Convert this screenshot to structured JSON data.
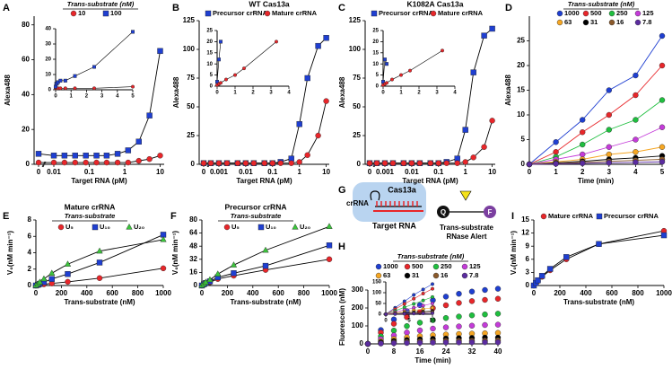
{
  "chart_data": [
    {
      "type": "line",
      "label": "A",
      "ylabel": "Alexa488",
      "xlabel": "Target RNA (pM)",
      "xscale": "log",
      "legend_title": "Trans-substrate (nM)",
      "line_color": "#000000",
      "x": [
        0,
        0.01,
        0.02,
        0.04,
        0.08,
        0.16,
        0.31,
        0.63,
        1.25,
        2.5,
        5,
        10
      ],
      "series": [
        {
          "name": "10",
          "color": "#e8262a",
          "marker": "circle",
          "values": [
            1,
            1,
            1,
            1,
            1,
            1,
            1,
            1,
            1,
            2,
            3,
            5
          ]
        },
        {
          "name": "100",
          "color": "#1f3fd1",
          "marker": "square",
          "values": [
            6,
            5,
            5,
            5,
            5,
            5,
            5,
            6,
            8,
            13,
            28,
            65
          ]
        }
      ],
      "xlim": [
        0,
        13
      ],
      "xticks": [
        0,
        0.01,
        0.1,
        1,
        10
      ],
      "ylim": [
        0,
        85
      ],
      "yticks": [
        0,
        20,
        40,
        60,
        80
      ],
      "inset": {
        "type": "line",
        "x": [
          0,
          0.04,
          0.08,
          0.16,
          0.31,
          0.63,
          1.25,
          2.5,
          5
        ],
        "series": [
          {
            "values": [
              1,
              1,
              1,
              1,
              1,
              1,
              1,
              1,
              2
            ]
          },
          {
            "values": [
              2,
              4,
              4,
              5,
              6,
              6,
              9,
              15,
              38
            ]
          }
        ],
        "xlim": [
          0,
          5
        ],
        "xticks": [
          0,
          1,
          2,
          3,
          4,
          5
        ],
        "ylim": [
          0,
          40
        ],
        "yticks": [
          0,
          10,
          20,
          30,
          40
        ]
      }
    },
    {
      "type": "line",
      "label": "B",
      "title": "WT Cas13a",
      "ylabel": "Alexa488",
      "xlabel": "Target RNA (pM)",
      "xscale": "log",
      "line_color": "#000000",
      "x": [
        0,
        0.0005,
        0.001,
        0.002,
        0.005,
        0.01,
        0.02,
        0.05,
        0.1,
        0.2,
        0.5,
        1,
        2,
        5,
        10
      ],
      "series": [
        {
          "name": "Precursor crRNA",
          "color": "#1f3fd1",
          "marker": "square",
          "values": [
            1,
            1,
            1,
            1,
            1,
            1,
            1,
            1,
            1,
            2,
            5,
            35,
            75,
            103,
            110
          ]
        },
        {
          "name": "Mature crRNA",
          "color": "#e8262a",
          "marker": "circle",
          "values": [
            1,
            1,
            1,
            1,
            1,
            1,
            1,
            1,
            1,
            1,
            1,
            2,
            8,
            25,
            55
          ]
        }
      ],
      "xlim": [
        0,
        13
      ],
      "xticks": [
        0,
        0.001,
        0.01,
        0.1,
        1,
        10
      ],
      "ylim": [
        0,
        125
      ],
      "yticks": [
        0,
        25,
        50,
        75,
        100,
        125
      ],
      "inset": {
        "type": "line",
        "x": [
          0,
          0.1,
          0.2,
          0.5,
          1,
          1.5,
          3.3
        ],
        "series": [
          {
            "values": [
              2,
              12,
              20,
              null,
              null,
              null,
              null
            ]
          },
          {
            "values": [
              0.5,
              1,
              1.5,
              3,
              5,
              8,
              20
            ]
          }
        ],
        "xlim": [
          0,
          4
        ],
        "xticks": [
          0,
          1,
          2,
          3,
          4
        ],
        "ylim": [
          0,
          25
        ],
        "yticks": [
          0,
          5,
          10,
          15,
          20,
          25
        ]
      }
    },
    {
      "type": "line",
      "label": "C",
      "title": "K1082A Cas13a",
      "ylabel": "Alexa488",
      "xlabel": "Target RNA (pM)",
      "xscale": "log",
      "line_color": "#000000",
      "x": [
        0,
        0.0005,
        0.001,
        0.002,
        0.005,
        0.01,
        0.02,
        0.05,
        0.1,
        0.2,
        0.5,
        1,
        2,
        5,
        10
      ],
      "series": [
        {
          "name": "Precursor crRNA",
          "color": "#1f3fd1",
          "marker": "square",
          "values": [
            1,
            1,
            1,
            1,
            1,
            1,
            1,
            1,
            1,
            2,
            5,
            30,
            80,
            112,
            118
          ]
        },
        {
          "name": "Mature crRNA",
          "color": "#e8262a",
          "marker": "circle",
          "values": [
            1,
            1,
            1,
            1,
            1,
            1,
            1,
            1,
            1,
            1,
            1,
            2,
            6,
            15,
            38
          ]
        }
      ],
      "xlim": [
        0,
        13
      ],
      "xticks": [
        0,
        0.001,
        0.01,
        0.1,
        1,
        10
      ],
      "ylim": [
        0,
        125
      ],
      "yticks": [
        0,
        25,
        50,
        75,
        100,
        125
      ],
      "inset": {
        "type": "line",
        "x": [
          0,
          0.1,
          0.2,
          0.5,
          1,
          1.5,
          3.3
        ],
        "series": [
          {
            "values": [
              2,
              12,
              10,
              null,
              null,
              null,
              null
            ]
          },
          {
            "values": [
              0.5,
              1,
              1.5,
              3,
              5,
              7,
              16
            ]
          }
        ],
        "xlim": [
          0,
          4
        ],
        "xticks": [
          0,
          1,
          2,
          3,
          4
        ],
        "ylim": [
          0,
          25
        ],
        "yticks": [
          0,
          5,
          10,
          15,
          20,
          25
        ]
      }
    },
    {
      "type": "line",
      "label": "D",
      "ylabel": "Alexa488",
      "xlabel": "Time (min)",
      "legend_title": "Trans-substrate (nM)",
      "x": [
        0,
        1,
        2,
        3,
        4,
        5
      ],
      "series": [
        {
          "name": "1000",
          "color": "#1f3fd1",
          "marker": "circle",
          "values": [
            0,
            4.5,
            9,
            15,
            18,
            26
          ]
        },
        {
          "name": "500",
          "color": "#e8262a",
          "marker": "circle",
          "values": [
            0,
            2.5,
            6.5,
            10,
            14,
            20
          ]
        },
        {
          "name": "250",
          "color": "#1fbf3f",
          "marker": "circle",
          "values": [
            0,
            1.5,
            4,
            7,
            9,
            13
          ]
        },
        {
          "name": "125",
          "color": "#c43bd9",
          "marker": "circle",
          "values": [
            0,
            1,
            2,
            3.5,
            5,
            7.5
          ]
        },
        {
          "name": "63",
          "color": "#f5a623",
          "marker": "circle",
          "values": [
            0,
            0.5,
            1,
            2,
            2.5,
            3.5
          ]
        },
        {
          "name": "31",
          "color": "#000000",
          "marker": "circle",
          "values": [
            0,
            0.3,
            0.6,
            1,
            1.3,
            1.7
          ]
        },
        {
          "name": "16",
          "color": "#8b5a2b",
          "marker": "circle",
          "values": [
            0,
            0.2,
            0.4,
            0.6,
            0.8,
            1
          ]
        },
        {
          "name": "7.8",
          "color": "#5b2ca0",
          "marker": "circle",
          "values": [
            0,
            0.1,
            0.2,
            0.3,
            0.4,
            0.5
          ]
        }
      ],
      "xlim": [
        0,
        5
      ],
      "xticks": [
        0,
        1,
        2,
        3,
        4,
        5
      ],
      "ylim": [
        0,
        30
      ],
      "yticks": [
        0,
        5,
        10,
        15,
        20,
        25
      ]
    },
    {
      "type": "line",
      "label": "E",
      "title": "Mature crRNA",
      "legend_title": "Trans-substrate",
      "ylabel": "V₀(nM min⁻¹)",
      "xlabel": "Trans-substrate (nM)",
      "line_color": "#000000",
      "x": [
        0,
        16,
        31,
        63,
        125,
        250,
        500,
        1000
      ],
      "series": [
        {
          "name": "U₅",
          "color": "#e8262a",
          "marker": "circle",
          "values": [
            0,
            0.05,
            0.1,
            0.15,
            0.25,
            0.45,
            0.9,
            2.1
          ]
        },
        {
          "name": "U₁₀",
          "color": "#1f3fd1",
          "marker": "square",
          "values": [
            0,
            0.1,
            0.2,
            0.4,
            0.8,
            1.4,
            2.8,
            6.2
          ]
        },
        {
          "name": "U₂₀",
          "color": "#3cc43c",
          "marker": "triangle",
          "values": [
            0,
            0.2,
            0.4,
            0.8,
            1.5,
            2.6,
            4.2,
            5.6
          ]
        }
      ],
      "xlim": [
        0,
        1000
      ],
      "xticks": [
        0,
        200,
        400,
        600,
        800,
        1000
      ],
      "ylim": [
        0,
        8
      ],
      "yticks": [
        0,
        2,
        4,
        6,
        8
      ]
    },
    {
      "type": "line",
      "label": "F",
      "title": "Precursor crRNA",
      "legend_title": "Trans-substrate",
      "ylabel": "V₀(nM min⁻¹)",
      "xlabel": "Trans-substrate (nM)",
      "line_color": "#000000",
      "x": [
        0,
        16,
        31,
        63,
        125,
        250,
        500,
        1000
      ],
      "series": [
        {
          "name": "U₅",
          "color": "#e8262a",
          "marker": "circle",
          "values": [
            0,
            1,
            2,
            4,
            8,
            12,
            19,
            32
          ]
        },
        {
          "name": "U₁₀",
          "color": "#1f3fd1",
          "marker": "square",
          "values": [
            0,
            1.5,
            3,
            5,
            10,
            15,
            24,
            49
          ]
        },
        {
          "name": "U₂₀",
          "color": "#3cc43c",
          "marker": "triangle",
          "values": [
            0,
            2,
            4,
            7,
            14,
            25,
            43,
            72
          ]
        }
      ],
      "xlim": [
        0,
        1000
      ],
      "xticks": [
        0,
        200,
        400,
        600,
        800,
        1000
      ],
      "ylim": [
        0,
        80
      ],
      "yticks": [
        0,
        16,
        32,
        48,
        64,
        80
      ]
    },
    {
      "type": "scatter",
      "label": "H",
      "ylabel": "Fluorescein (nM)",
      "xlabel": "Time (min)",
      "legend_title": "Trans-substrate (nM)",
      "x": [
        0,
        4,
        8,
        12,
        16,
        20,
        24,
        28,
        32,
        36,
        40
      ],
      "series": [
        {
          "name": "1000",
          "color": "#1f3fd1",
          "marker": "circle",
          "values": [
            0,
            77,
            136,
            182,
            216,
            243,
            263,
            279,
            291,
            300,
            307
          ]
        },
        {
          "name": "500",
          "color": "#e8262a",
          "marker": "circle",
          "values": [
            0,
            63,
            112,
            149,
            177,
            199,
            215,
            228,
            238,
            245,
            251
          ]
        },
        {
          "name": "250",
          "color": "#1fbf3f",
          "marker": "circle",
          "values": [
            0,
            42,
            74,
            99,
            118,
            132,
            144,
            152,
            159,
            164,
            168
          ]
        },
        {
          "name": "125",
          "color": "#c43bd9",
          "marker": "circle",
          "values": [
            0,
            27,
            47,
            63,
            75,
            85,
            92,
            97,
            101,
            105,
            107
          ]
        },
        {
          "name": "63",
          "color": "#f5a623",
          "marker": "circle",
          "values": [
            0,
            15,
            27,
            36,
            43,
            48,
            52,
            55,
            57,
            59,
            61
          ]
        },
        {
          "name": "31",
          "color": "#000000",
          "marker": "circle",
          "values": [
            0,
            9,
            16,
            21,
            25,
            28,
            30,
            32,
            33,
            35,
            35
          ]
        },
        {
          "name": "16",
          "color": "#8b5a2b",
          "marker": "circle",
          "values": [
            0,
            4,
            8,
            11,
            13,
            14,
            16,
            17,
            17,
            18,
            19
          ]
        },
        {
          "name": "7.8",
          "color": "#5b2ca0",
          "marker": "circle",
          "values": [
            0,
            2,
            4,
            5,
            6,
            7,
            8,
            8,
            9,
            9,
            9
          ]
        }
      ],
      "xlim": [
        0,
        40
      ],
      "xticks": [
        0,
        8,
        16,
        24,
        32,
        40
      ],
      "ylim": [
        0,
        300
      ],
      "yticks": [
        0,
        100,
        200,
        300
      ],
      "inset": {
        "type": "line",
        "x": [
          0,
          2,
          4,
          6,
          8,
          10
        ],
        "series": [
          {
            "values": [
              0,
              30,
              60,
              90,
              115,
              140
            ]
          },
          {
            "values": [
              0,
              24,
              48,
              72,
              96,
              118
            ]
          },
          {
            "values": [
              0,
              16,
              32,
              48,
              64,
              80
            ]
          },
          {
            "values": [
              0,
              10,
              20,
              30,
              40,
              50
            ]
          },
          {
            "values": [
              0,
              6,
              12,
              18,
              24,
              30
            ]
          },
          {
            "values": [
              0,
              3,
              6,
              9,
              12,
              15
            ]
          },
          {
            "values": [
              0,
              2,
              4,
              6,
              8,
              10
            ]
          },
          {
            "values": [
              0,
              1,
              2,
              3,
              4,
              5
            ]
          }
        ],
        "xlim": [
          0,
          10
        ],
        "xticks": [
          0,
          5,
          10
        ],
        "ylim": [
          0,
          150
        ],
        "yticks": [
          0,
          50,
          100,
          150
        ]
      }
    },
    {
      "type": "line",
      "label": "I",
      "ylabel": "V₀(nM min⁻¹)",
      "xlabel": "Trans-substrate (nM)",
      "line_color": "#000000",
      "x": [
        0,
        16,
        31,
        63,
        125,
        250,
        500,
        1000
      ],
      "series": [
        {
          "name": "Mature crRNA",
          "color": "#e8262a",
          "marker": "circle",
          "values": [
            0,
            0.5,
            1,
            2,
            3.5,
            6,
            9.5,
            12.5
          ]
        },
        {
          "name": "Precursor crRNA",
          "color": "#1f3fd1",
          "marker": "square",
          "values": [
            0,
            0.6,
            1.2,
            2.2,
            3.8,
            6.5,
            9.5,
            11.5
          ]
        }
      ],
      "xlim": [
        0,
        1000
      ],
      "xticks": [
        0,
        200,
        400,
        600,
        800,
        1000
      ],
      "ylim": [
        0,
        15
      ],
      "yticks": [
        0,
        3,
        6,
        9,
        12,
        15
      ]
    }
  ],
  "diagram": {
    "label": "G",
    "protein": "Cas13a",
    "guide": "crRNA",
    "target": "Target RNA",
    "quencher": "Q",
    "fluorophore": "F",
    "reporter": [
      "Trans-substrate",
      "RNase Alert"
    ]
  }
}
